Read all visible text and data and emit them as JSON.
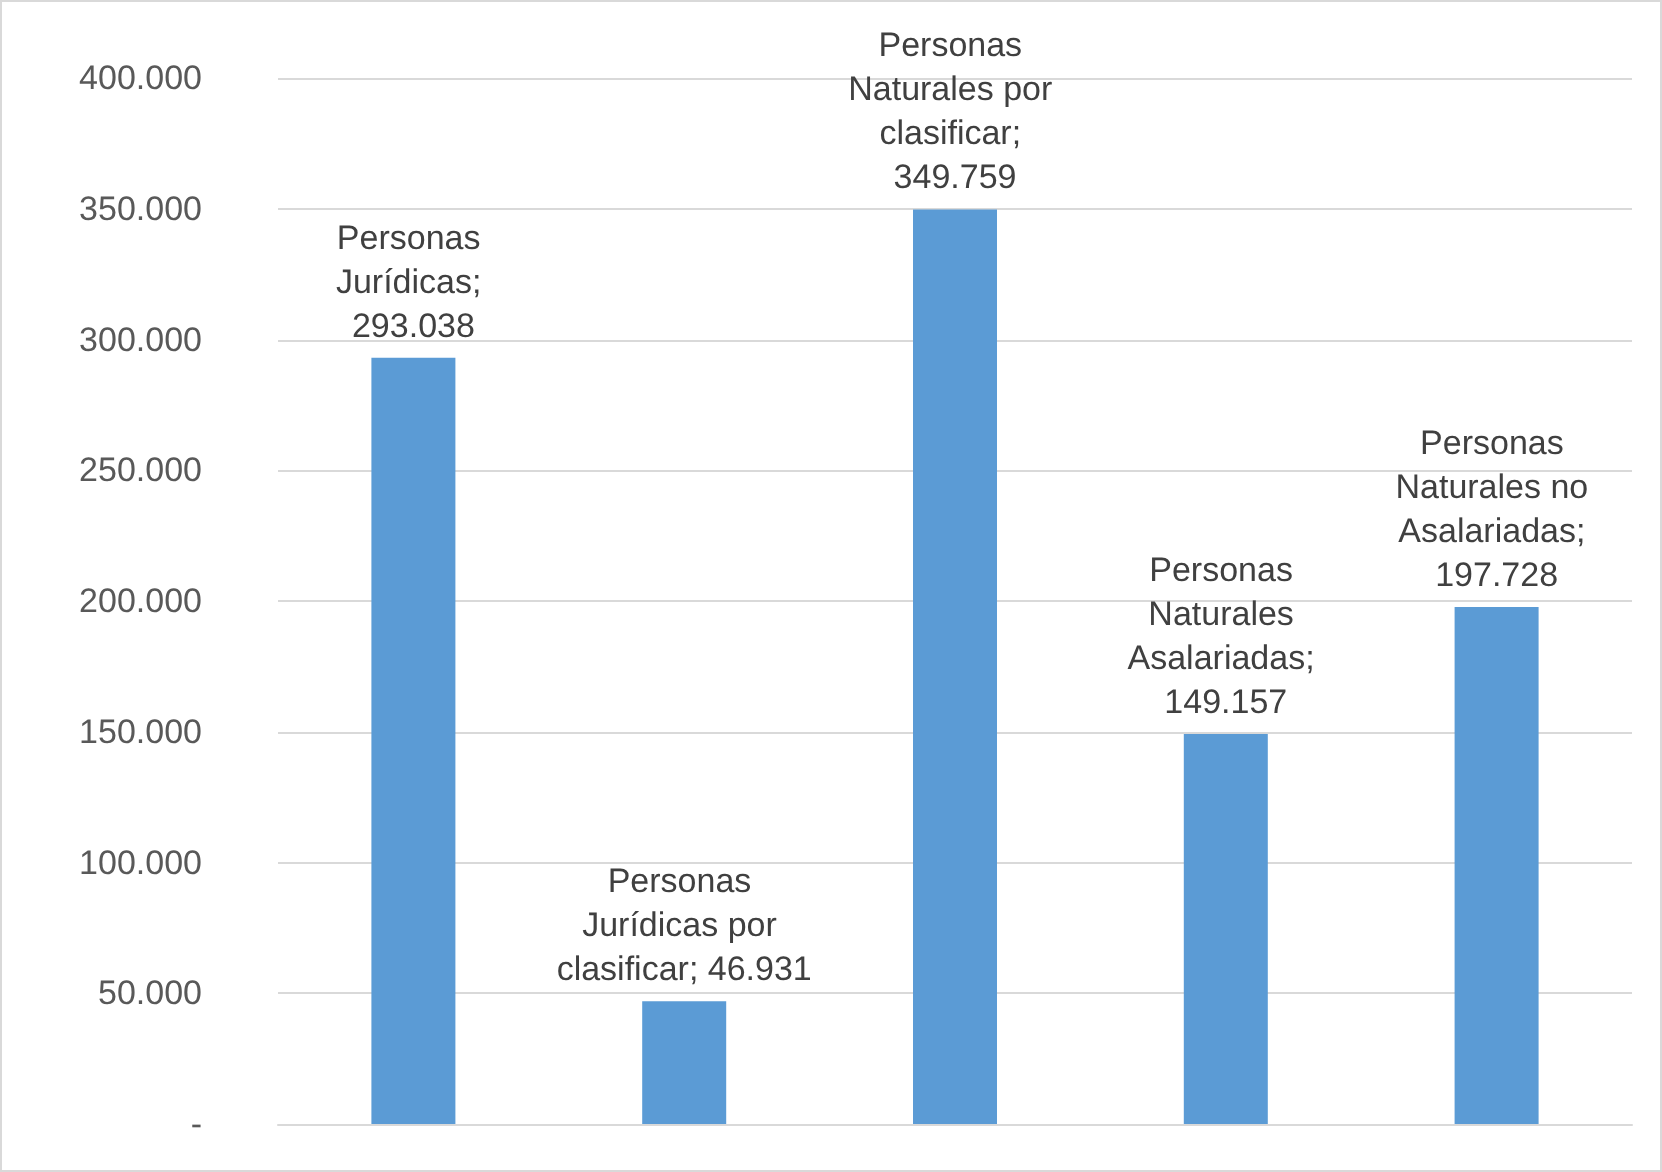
{
  "chart_data": {
    "type": "bar",
    "categories": [
      null,
      null,
      null,
      null,
      null
    ],
    "values": [
      293038,
      46931,
      349759,
      149157,
      197728
    ],
    "value_labels": [
      "Personas Jurídicas; 293.038",
      "Personas Jurídicas por clasificar; 46.931",
      "Personas Naturales por clasificar; 349.759",
      "Personas Naturales Asalariadas; 149.157",
      "Personas Naturales no Asalariadas; 197.728"
    ],
    "color": "#5b9bd5",
    "ylim": [
      0,
      400000
    ],
    "yticks": [
      {
        "value": 0,
        "label": "-"
      },
      {
        "value": 50000,
        "label": "50.000"
      },
      {
        "value": 100000,
        "label": "100.000"
      },
      {
        "value": 150000,
        "label": "150.000"
      },
      {
        "value": 200000,
        "label": "200.000"
      },
      {
        "value": 250000,
        "label": "250.000"
      },
      {
        "value": 300000,
        "label": "300.000"
      },
      {
        "value": 350000,
        "label": "350.000"
      },
      {
        "value": 400000,
        "label": "400.000"
      }
    ],
    "grid": "y"
  }
}
